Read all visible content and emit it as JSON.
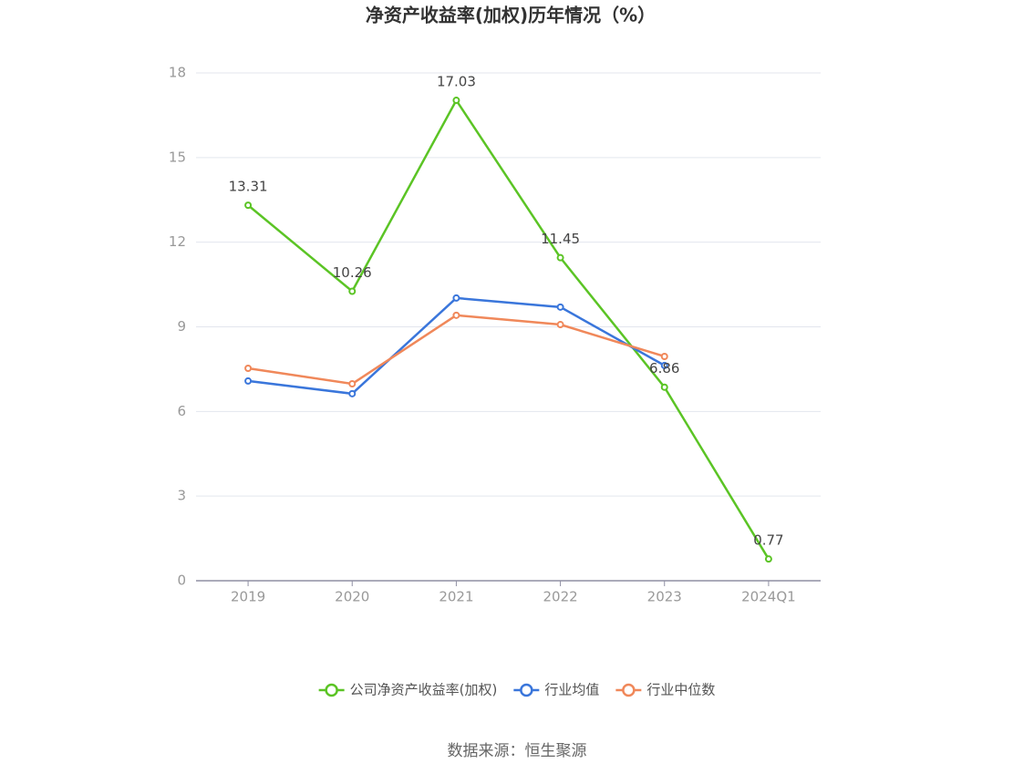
{
  "chart_data": {
    "type": "line",
    "title": "净资产收益率(加权)历年情况（%）",
    "categories": [
      "2019",
      "2020",
      "2021",
      "2022",
      "2023",
      "2024Q1"
    ],
    "series": [
      {
        "name": "公司净资产收益率(加权)",
        "color": "#5bc425",
        "values": [
          13.31,
          10.26,
          17.03,
          11.45,
          6.86,
          0.77
        ],
        "show_labels": true
      },
      {
        "name": "行业均值",
        "color": "#3a76db",
        "values": [
          7.08,
          6.63,
          10.02,
          9.7,
          7.63,
          null
        ],
        "show_labels": false
      },
      {
        "name": "行业中位数",
        "color": "#f0885a",
        "values": [
          7.53,
          6.98,
          9.41,
          9.08,
          7.95,
          null
        ],
        "show_labels": false
      }
    ],
    "ylim": [
      0,
      18
    ],
    "yticks": [
      0,
      3,
      6,
      9,
      12,
      15,
      18
    ],
    "grid": true,
    "legend": "bottom",
    "source": "数据来源：恒生聚源"
  }
}
